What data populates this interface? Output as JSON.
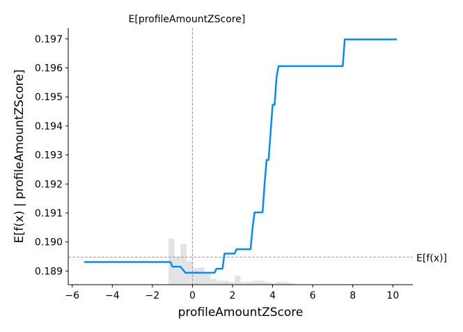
{
  "chart_data": {
    "type": "line",
    "title": "",
    "xlabel": "profileAmountZScore",
    "ylabel": "E[f(x) | profileAmountZScore]",
    "xlim": [
      -6.2,
      11
    ],
    "ylim": [
      0.18853,
      0.19738
    ],
    "x_ticks": [
      -6,
      -4,
      -2,
      0,
      2,
      4,
      6,
      8,
      10
    ],
    "x_tick_labels": [
      "−6",
      "−4",
      "−2",
      "0",
      "2",
      "4",
      "6",
      "8",
      "10"
    ],
    "y_ticks": [
      0.189,
      0.19,
      0.191,
      0.192,
      0.193,
      0.194,
      0.195,
      0.196,
      0.197
    ],
    "y_tick_labels": [
      "0.189",
      "0.190",
      "0.191",
      "0.192",
      "0.193",
      "0.194",
      "0.195",
      "0.196",
      "0.197"
    ],
    "grid": false,
    "line_color": "#008bfb",
    "series": [
      {
        "x": [
          -5.4,
          -1.1,
          -1.0,
          -0.6,
          -0.35,
          -0.3,
          1.1,
          1.2,
          1.5,
          1.6,
          2.1,
          2.2,
          2.9,
          3.0,
          3.1,
          3.5,
          3.6,
          3.7,
          3.8,
          4.0,
          4.1,
          4.2,
          4.3,
          4.4,
          7.5,
          7.6,
          10.2
        ],
        "y": [
          0.18931,
          0.18931,
          0.18915,
          0.18915,
          0.18894,
          0.18894,
          0.18894,
          0.18908,
          0.18908,
          0.1896,
          0.1896,
          0.18975,
          0.18975,
          0.1905,
          0.19102,
          0.19102,
          0.192,
          0.19283,
          0.19283,
          0.19473,
          0.19473,
          0.1957,
          0.19606,
          0.19606,
          0.19606,
          0.19698,
          0.19698
        ]
      }
    ],
    "histogram": {
      "color": "#cccccc",
      "bins": [
        {
          "x0": -1.2,
          "x1": -0.9,
          "height": 0.190115
        },
        {
          "x0": -0.9,
          "x1": -0.6,
          "height": 0.18948
        },
        {
          "x0": -0.6,
          "x1": -0.3,
          "height": 0.18993
        },
        {
          "x0": -0.3,
          "x1": 0.0,
          "height": 0.18934
        },
        {
          "x0": 0.0,
          "x1": 0.3,
          "height": 0.1891
        },
        {
          "x0": 0.3,
          "x1": 0.6,
          "height": 0.18912
        },
        {
          "x0": 0.6,
          "x1": 0.9,
          "height": 0.1889
        },
        {
          "x0": 0.9,
          "x1": 1.2,
          "height": 0.18873
        },
        {
          "x0": 1.2,
          "x1": 1.5,
          "height": 0.18867
        },
        {
          "x0": 1.5,
          "x1": 1.8,
          "height": 0.18866
        },
        {
          "x0": 1.8,
          "x1": 2.1,
          "height": 0.18862
        },
        {
          "x0": 2.1,
          "x1": 2.4,
          "height": 0.18884
        },
        {
          "x0": 2.4,
          "x1": 2.7,
          "height": 0.18862
        },
        {
          "x0": 2.7,
          "x1": 3.0,
          "height": 0.18862
        },
        {
          "x0": 3.0,
          "x1": 3.3,
          "height": 0.18867
        },
        {
          "x0": 3.3,
          "x1": 3.6,
          "height": 0.18867
        },
        {
          "x0": 3.6,
          "x1": 3.9,
          "height": 0.18862
        },
        {
          "x0": 3.9,
          "x1": 4.2,
          "height": 0.18858
        },
        {
          "x0": 4.2,
          "x1": 4.5,
          "height": 0.18862
        },
        {
          "x0": 4.5,
          "x1": 4.8,
          "height": 0.18862
        },
        {
          "x0": 4.8,
          "x1": 5.1,
          "height": 0.18858
        }
      ]
    },
    "reference_lines": {
      "vertical": {
        "x": 0.0,
        "label": "E[profileAmountZScore]"
      },
      "horizontal": {
        "y": 0.18948,
        "label": "E[f(x)]"
      },
      "color": "#999999"
    }
  }
}
